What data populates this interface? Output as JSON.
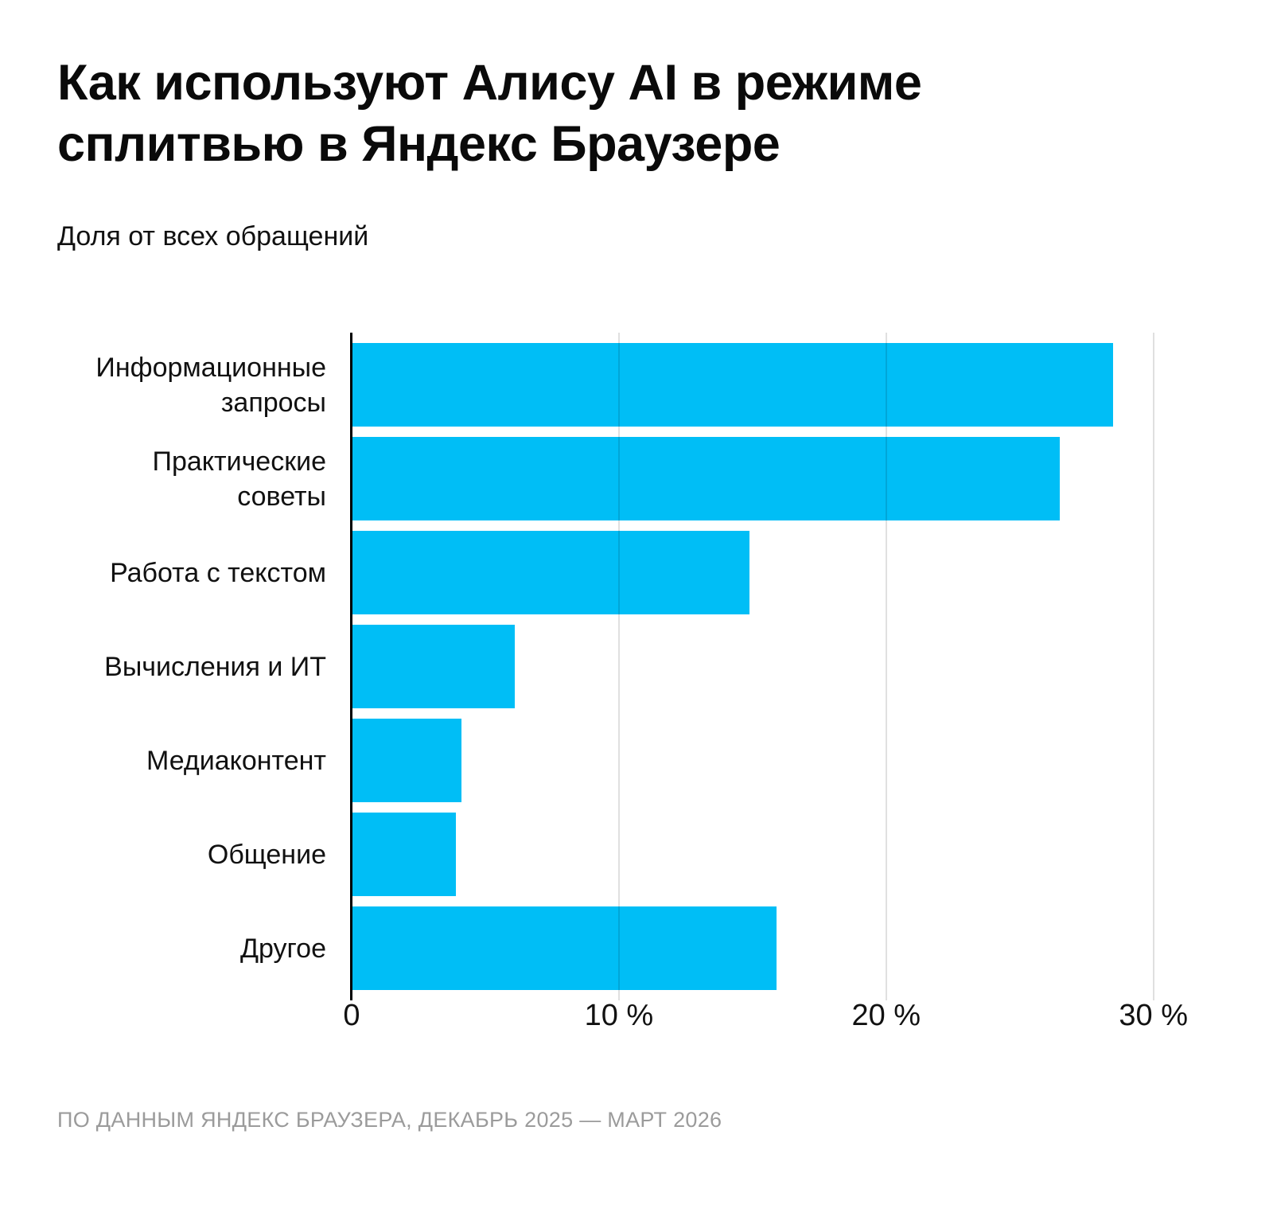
{
  "header": {
    "title": "Как используют Алису AI в режиме сплитвью в Яндекс Браузере",
    "subtitle": "Доля от всех обращений"
  },
  "footer": {
    "source": "ПО ДАННЫМ ЯНДЕКС БРАУЗЕРА, ДЕКАБРЬ 2025 — МАРТ 2026"
  },
  "colors": {
    "bar": "#00bef6",
    "axis": "#000000",
    "gridline": "#e0e0e0",
    "text": "#111111",
    "footer_text": "#9b9b9b",
    "background": "#ffffff"
  },
  "chart_data": {
    "type": "bar",
    "orientation": "horizontal",
    "title": "Как используют Алису AI в режиме сплитвью в Яндекс Браузере",
    "subtitle": "Доля от всех обращений",
    "unit": "%",
    "categories": [
      "Информационные запросы",
      "Практические советы",
      "Работа с текстом",
      "Вычисления и ИТ",
      "Медиаконтент",
      "Общение",
      "Другое"
    ],
    "values": [
      28.5,
      26.5,
      14.9,
      6.1,
      4.1,
      3.9,
      15.9
    ],
    "x_axis": {
      "min": 0,
      "max_visible": 31.2,
      "ticks": [
        {
          "value": 0,
          "label": "0"
        },
        {
          "value": 10,
          "label": "10 %"
        },
        {
          "value": 20,
          "label": "20 %"
        },
        {
          "value": 30,
          "label": "30 %"
        }
      ],
      "grid": true
    }
  }
}
